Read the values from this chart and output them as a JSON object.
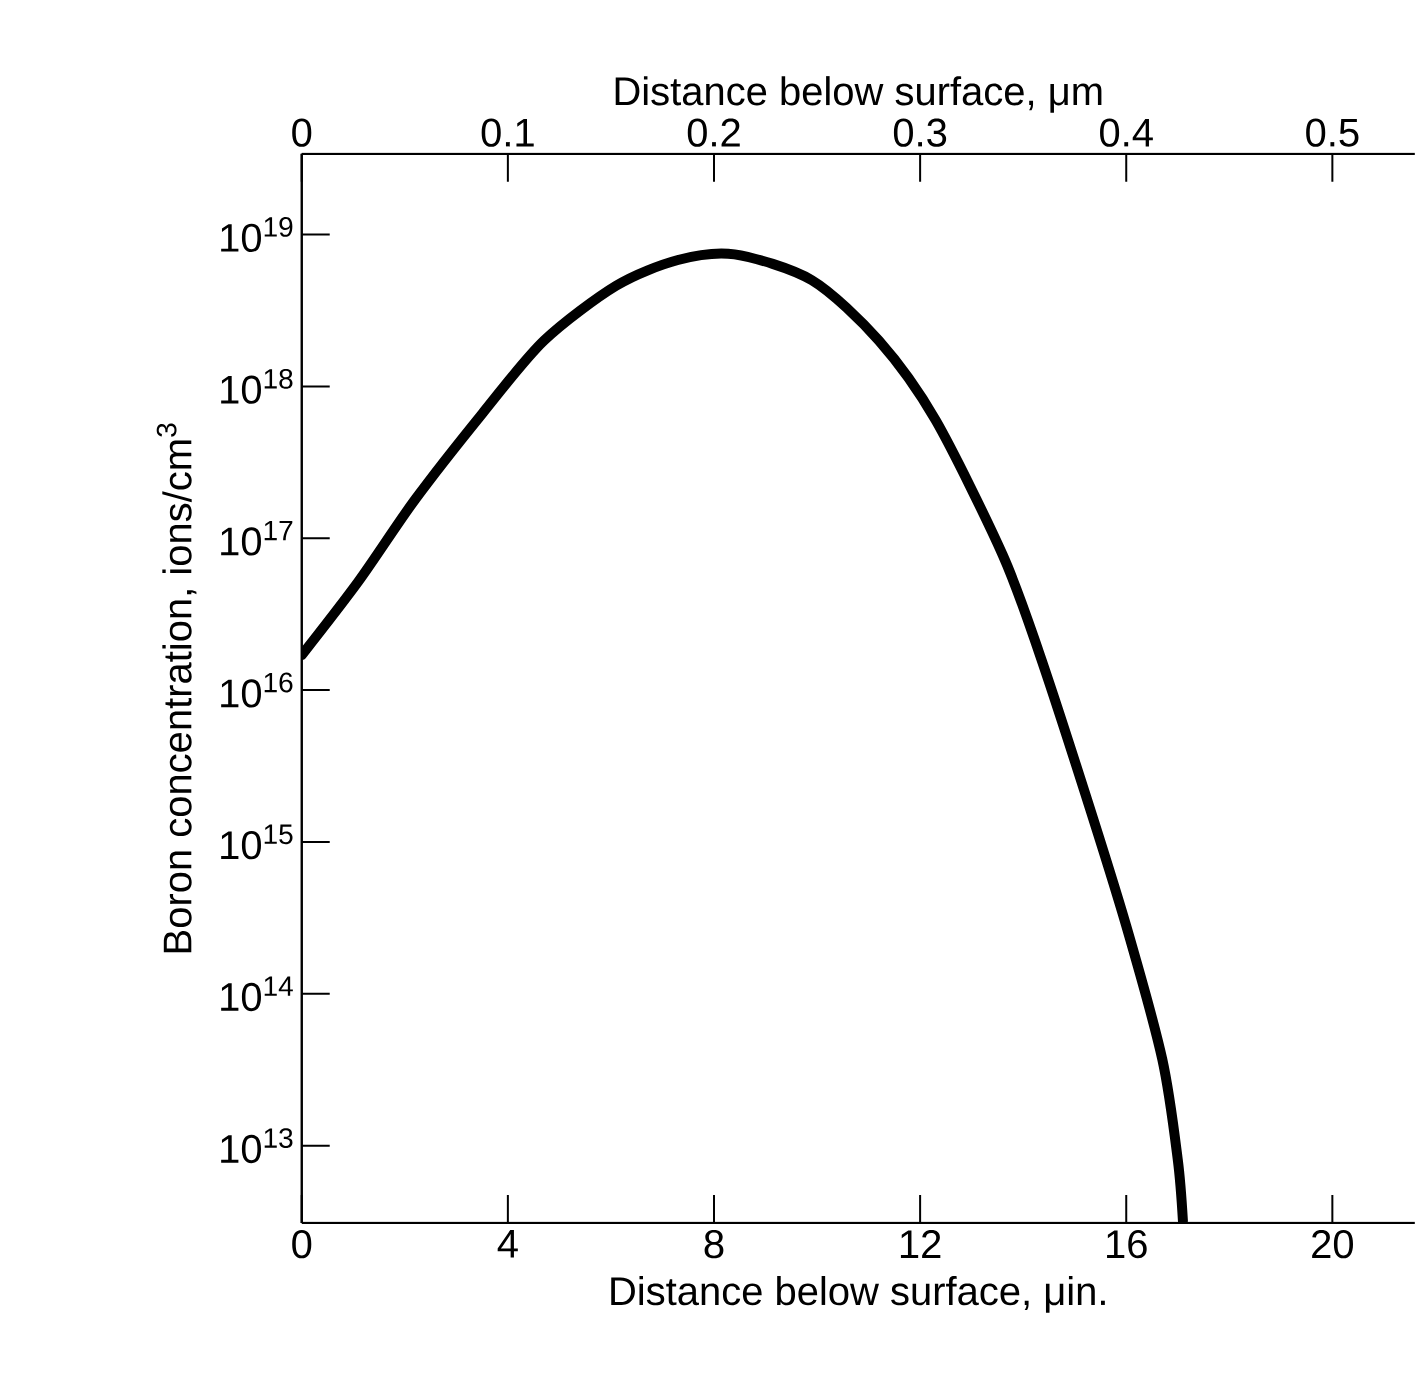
{
  "chart_data": {
    "type": "line",
    "xlabel": "Distance below surface, μin.",
    "x2label": "Distance below surface, μm",
    "ylabel": "Boron concentration, ions/cm$^{3}$",
    "log": "y",
    "color": "#000000",
    "x": [
      0,
      1.1,
      2.2,
      3.5,
      4.7,
      6.1,
      7.3,
      8.4,
      9.9,
      11.2,
      12.3,
      13.6,
      14.3,
      15.2,
      16.0,
      16.7,
      17.0,
      17.1
    ],
    "values": [
      1.7e+16,
      5.2e+16,
      1.8e+17,
      6.6e+17,
      2e+18,
      4.6e+18,
      6.8e+18,
      7.4e+18,
      5e+18,
      2e+18,
      6e+17,
      7.8e+16,
      1.8e+16,
      2100000000000000.0,
      280000000000000.0,
      37000000000000.0,
      8100000000000.0,
      3200000000000.0
    ],
    "xlim": [
      0,
      21.6
    ],
    "xticks": [
      0,
      4,
      8,
      12,
      16,
      20
    ],
    "x2lim": [
      0,
      0.54
    ],
    "x2ticks": [
      0,
      0.1,
      0.2,
      0.3,
      0.4,
      0.5
    ],
    "ylim": [
      3100000000000.0,
      3.4e+19
    ],
    "yticks": [
      {
        "value": 10000000000000.0,
        "label": "10$^{13}$"
      },
      {
        "value": 100000000000000.0,
        "label": "10$^{14}$"
      },
      {
        "value": 1000000000000000.0,
        "label": "10$^{15}$"
      },
      {
        "value": 1e+16,
        "label": "10$^{16}$"
      },
      {
        "value": 1e+17,
        "label": "10$^{17}$"
      },
      {
        "value": 1e+18,
        "label": "10$^{18}$"
      },
      {
        "value": 1e+19,
        "label": "10$^{19}$"
      }
    ]
  }
}
